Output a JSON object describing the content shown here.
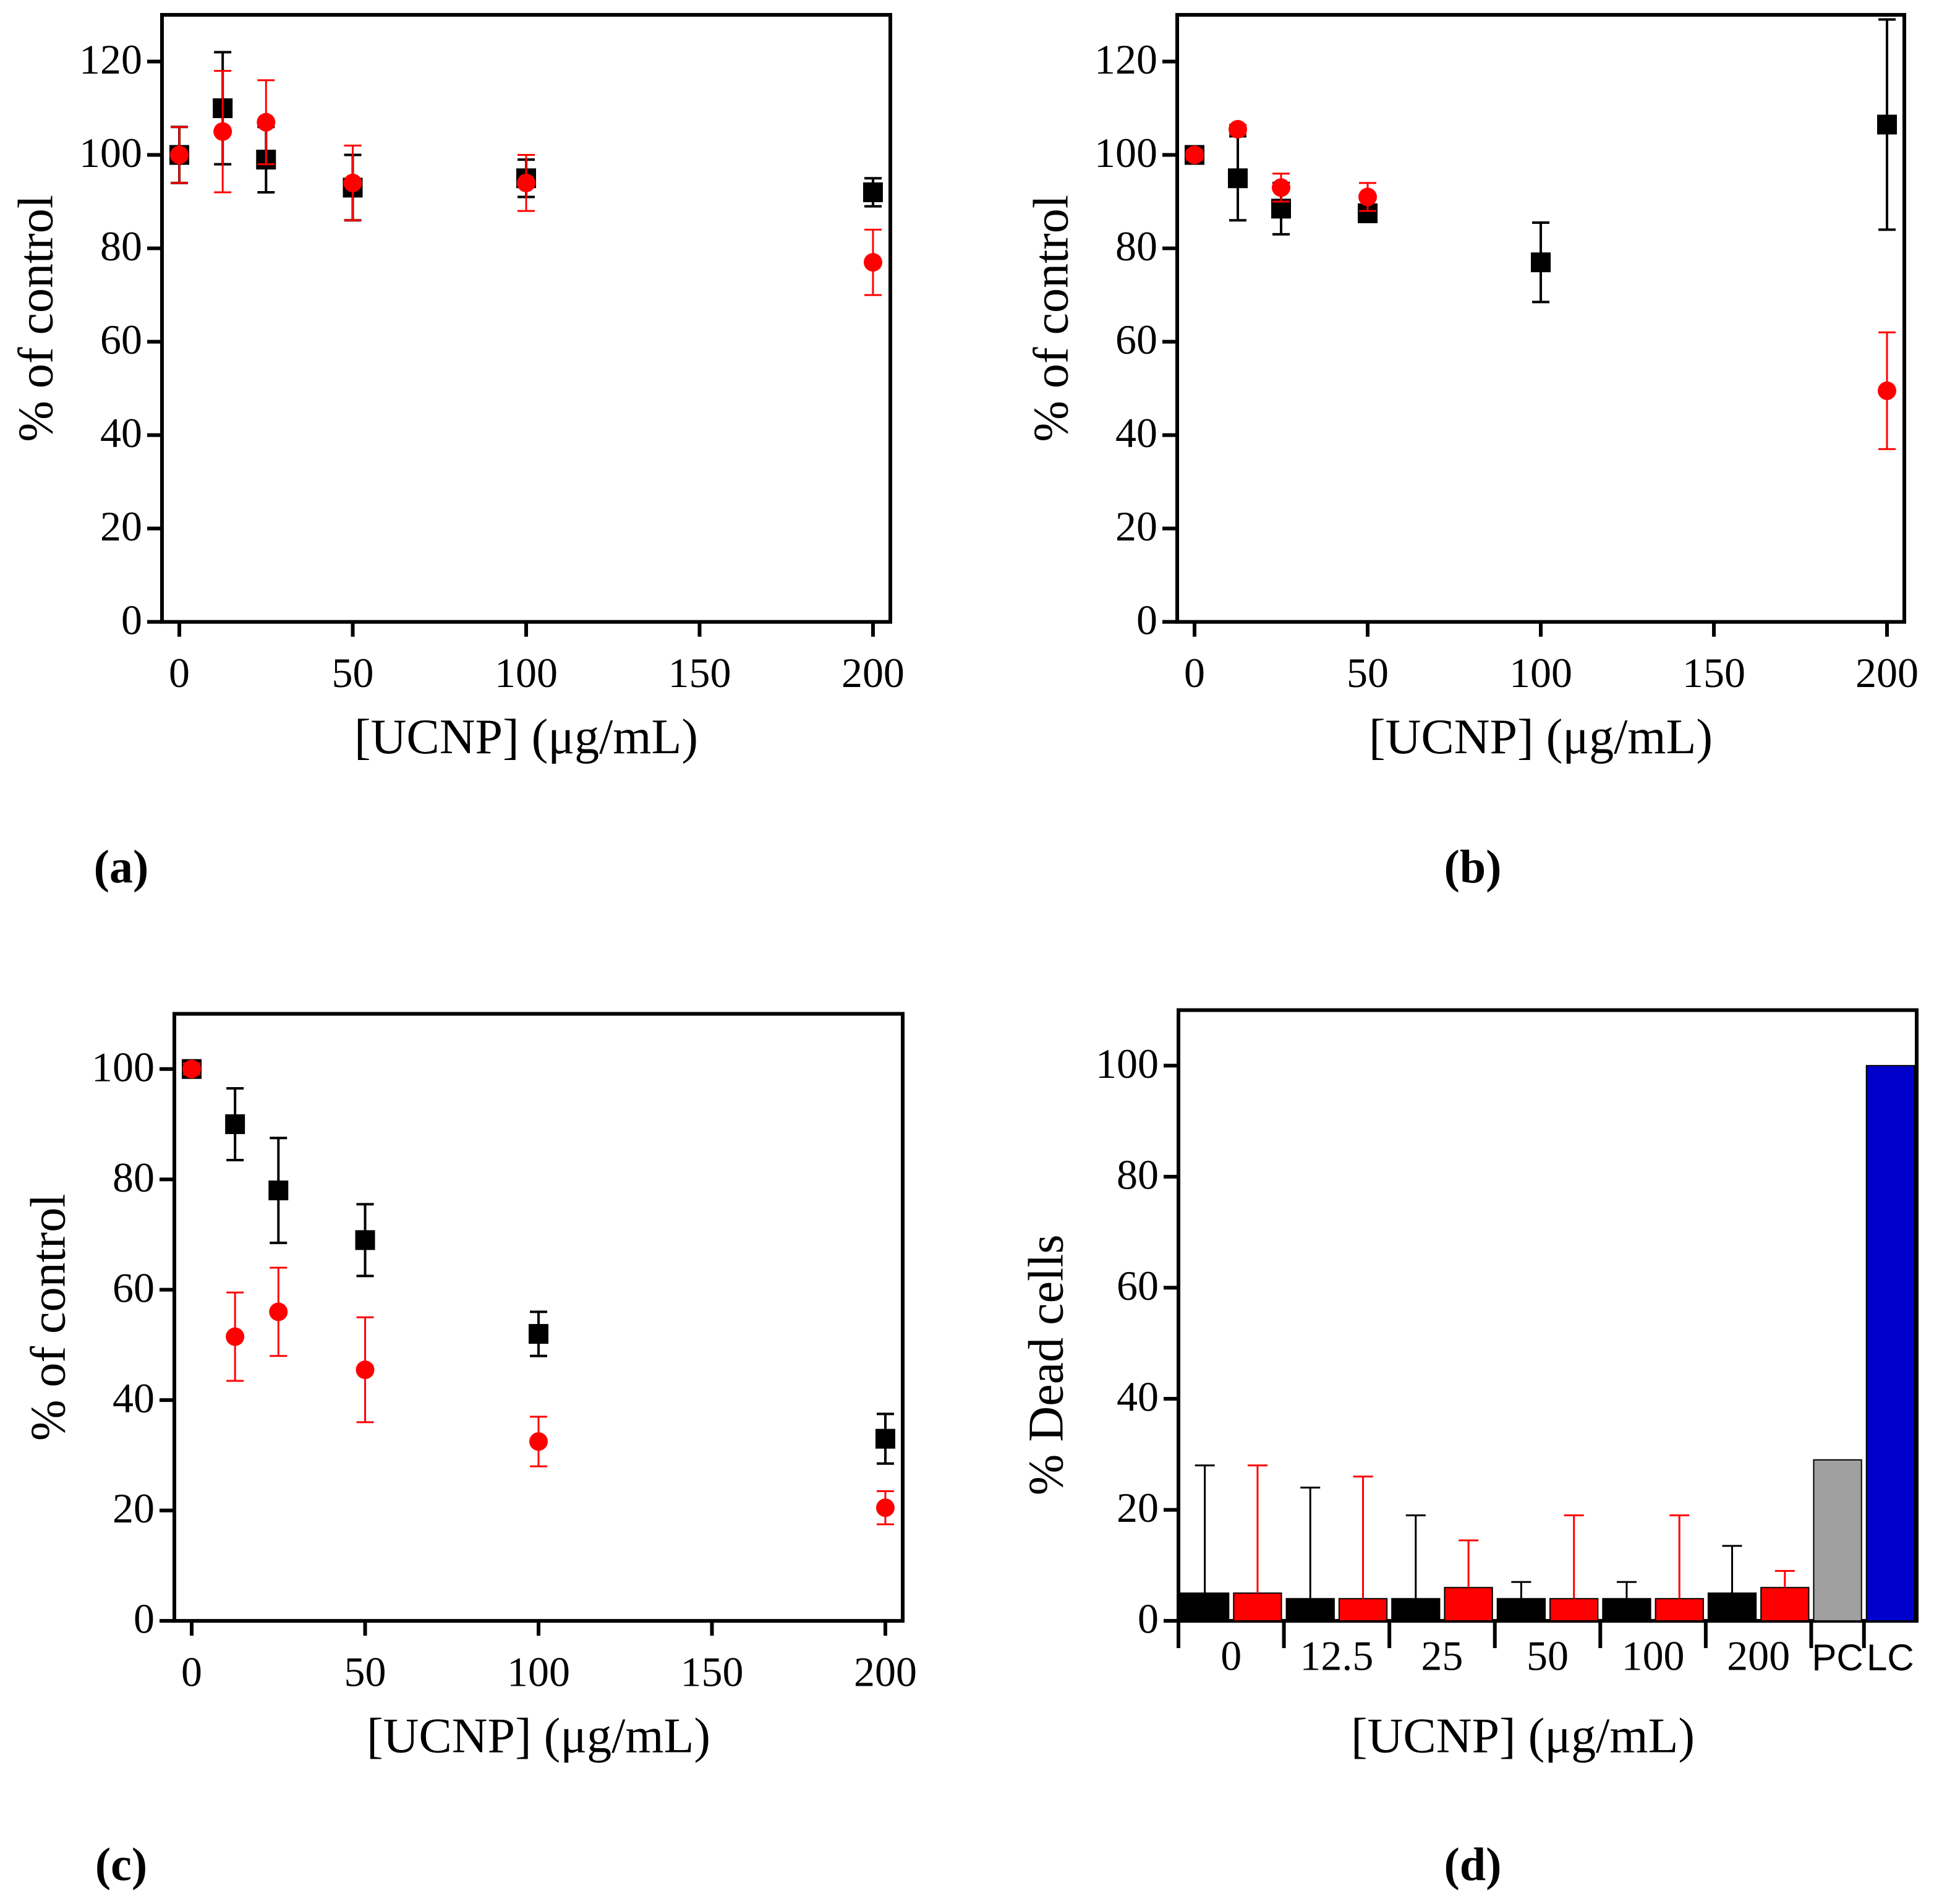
{
  "chart_data": [
    {
      "type": "scatter",
      "panel_label": "(a)",
      "x_label": "[UCNP] (μg/mL)",
      "y_label": "% of control",
      "x": [
        0,
        12.5,
        25,
        50,
        100,
        200
      ],
      "series": [
        {
          "color": "#000000",
          "marker": "square",
          "values": [
            100,
            110,
            99,
            93,
            95,
            92
          ],
          "errors": [
            6,
            12,
            7,
            7,
            4,
            3
          ]
        },
        {
          "color": "#ff0000",
          "marker": "circle",
          "values": [
            100,
            105,
            107,
            94,
            94,
            77
          ],
          "errors": [
            6,
            13,
            9,
            8,
            6,
            7
          ]
        }
      ],
      "xlim": [
        -5,
        205
      ],
      "xticks": [
        0,
        50,
        100,
        150,
        200
      ],
      "ylim": [
        0,
        130
      ],
      "yticks": [
        0,
        20,
        40,
        60,
        80,
        100,
        120
      ]
    },
    {
      "type": "scatter",
      "panel_label": "(b)",
      "x_label": "[UCNP] (μg/mL)",
      "y_label": "% of control",
      "x": [
        0,
        12.5,
        25,
        50,
        100,
        200
      ],
      "series": [
        {
          "color": "#000000",
          "marker": "square",
          "values": [
            100,
            95,
            88.5,
            87.5,
            77,
            106.5
          ],
          "errors": [
            1,
            9,
            5.5,
            1.5,
            8.5,
            22.5
          ]
        },
        {
          "color": "#ff0000",
          "marker": "circle",
          "values": [
            100,
            105.5,
            93,
            91,
            null,
            49.5
          ],
          "errors": [
            1,
            1,
            3,
            3,
            null,
            12.5
          ]
        }
      ],
      "xlim": [
        -5,
        205
      ],
      "xticks": [
        0,
        50,
        100,
        150,
        200
      ],
      "ylim": [
        0,
        130
      ],
      "yticks": [
        0,
        20,
        40,
        60,
        80,
        100,
        120
      ]
    },
    {
      "type": "scatter",
      "panel_label": "(c)",
      "x_label": "[UCNP] (μg/mL)",
      "y_label": "% of control",
      "x": [
        0,
        12.5,
        25,
        50,
        100,
        200
      ],
      "series": [
        {
          "color": "#000000",
          "marker": "square",
          "values": [
            100,
            90,
            78,
            69,
            52,
            33
          ],
          "errors": [
            1,
            6.5,
            9.5,
            6.5,
            4,
            4.5
          ]
        },
        {
          "color": "#ff0000",
          "marker": "circle",
          "values": [
            100,
            51.5,
            56,
            45.5,
            32.5,
            20.5
          ],
          "errors": [
            1,
            8,
            8,
            9.5,
            4.5,
            3
          ]
        }
      ],
      "xlim": [
        -5,
        205
      ],
      "xticks": [
        0,
        50,
        100,
        150,
        200
      ],
      "ylim": [
        0,
        110
      ],
      "yticks": [
        0,
        20,
        40,
        60,
        80,
        100
      ]
    },
    {
      "type": "bar",
      "panel_label": "(d)",
      "x_label": "[UCNP] (μg/mL)",
      "y_label": "% Dead cells",
      "categories": [
        "0",
        "12.5",
        "25",
        "50",
        "100",
        "200",
        "PC",
        "LC"
      ],
      "series": [
        {
          "color": "#000000",
          "values": [
            5,
            4,
            4,
            4,
            4,
            5,
            null,
            null
          ],
          "errors": [
            23,
            20,
            15,
            3,
            3,
            8.5,
            null,
            null
          ]
        },
        {
          "color": "#ff0000",
          "values": [
            5,
            4,
            6,
            4,
            4,
            6,
            null,
            null
          ],
          "errors": [
            23,
            22,
            8.5,
            15,
            15,
            3,
            null,
            null
          ]
        },
        {
          "color": "#a0a0a0",
          "values": [
            null,
            null,
            null,
            null,
            null,
            null,
            29,
            null
          ]
        },
        {
          "color": "#0000cc",
          "values": [
            null,
            null,
            null,
            null,
            null,
            null,
            null,
            100
          ]
        }
      ],
      "ylim": [
        0,
        110
      ],
      "yticks": [
        0,
        20,
        40,
        60,
        80,
        100
      ]
    }
  ]
}
